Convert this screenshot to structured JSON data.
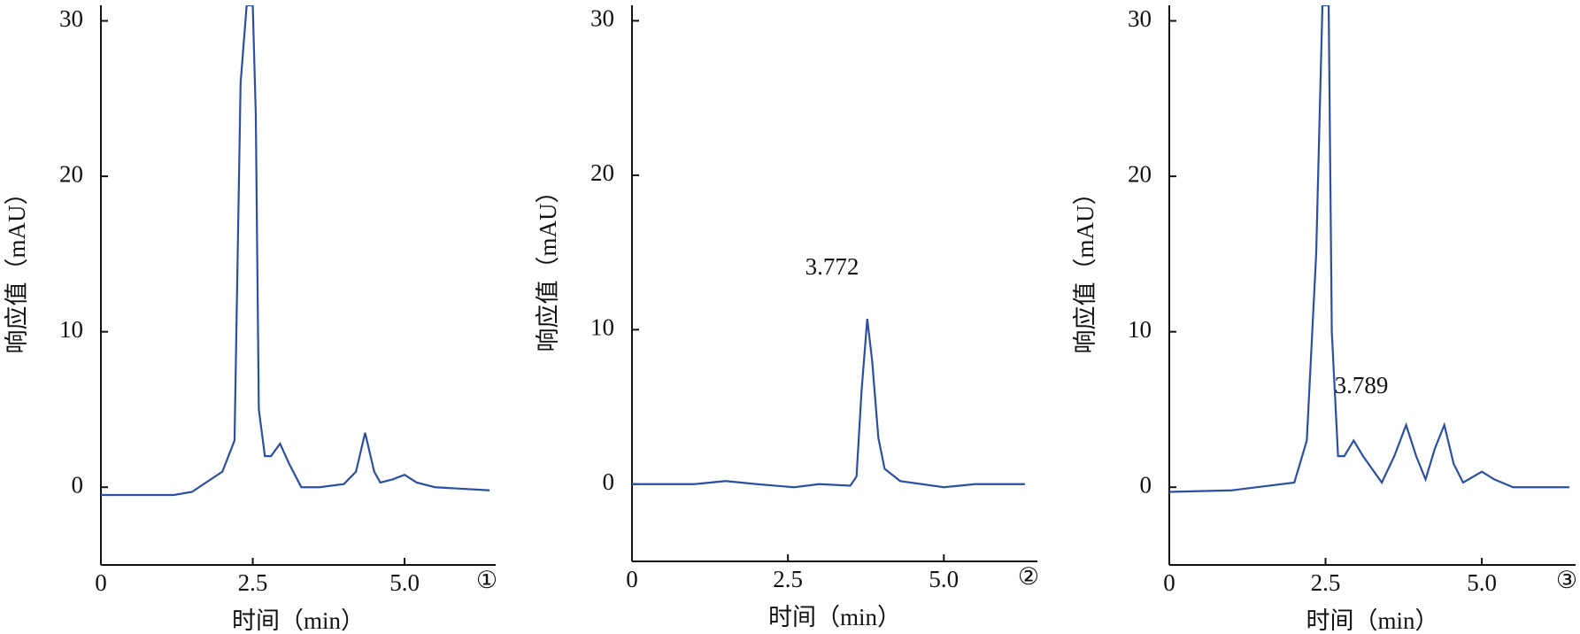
{
  "chart_data": [
    {
      "type": "line",
      "xlabel": "时间（min）",
      "ylabel": "响应值（mAU）",
      "panel_label": "①",
      "x": [
        0,
        1.2,
        1.5,
        2.0,
        2.2,
        2.3,
        2.4,
        2.5,
        2.55,
        2.6,
        2.7,
        2.8,
        2.95,
        3.1,
        3.3,
        3.6,
        4.0,
        4.2,
        4.35,
        4.5,
        4.6,
        4.8,
        5.0,
        5.2,
        5.5,
        6.4
      ],
      "values": [
        -0.5,
        -0.5,
        -0.3,
        1,
        3,
        26,
        31,
        31,
        24,
        5,
        2,
        2,
        2.8,
        1.5,
        0,
        0,
        0.2,
        1,
        3.5,
        1,
        0.3,
        0.5,
        0.8,
        0.3,
        0,
        -0.2
      ],
      "color": "#2b4fa3",
      "xlim": [
        0,
        6.5
      ],
      "ylim": [
        -5,
        31
      ],
      "xticks": [
        0,
        2.5,
        {
          "value": 5,
          "label": "5.0"
        }
      ],
      "yticks": [
        0,
        10,
        20,
        30
      ]
    },
    {
      "type": "line",
      "xlabel": "时间（min）",
      "ylabel": "响应值（mAU）",
      "panel_label": "②",
      "annotation": "3.772",
      "x": [
        0,
        1.0,
        1.5,
        2.0,
        2.6,
        3.0,
        3.5,
        3.6,
        3.68,
        3.772,
        3.85,
        3.95,
        4.05,
        4.3,
        5.0,
        5.5,
        6.3
      ],
      "values": [
        0,
        0,
        0.2,
        0,
        -0.2,
        0,
        -0.1,
        0.5,
        6,
        10.7,
        8,
        3,
        1,
        0.2,
        -0.2,
        0,
        0
      ],
      "color": "#2b4fa3",
      "xlim": [
        0,
        6.5
      ],
      "ylim": [
        -5,
        31
      ],
      "xticks": [
        0,
        2.5,
        {
          "value": 5,
          "label": "5.0"
        }
      ],
      "yticks": [
        0,
        10,
        20,
        30
      ]
    },
    {
      "type": "line",
      "xlabel": "时间（min）",
      "ylabel": "响应值（mAU）",
      "panel_label": "③",
      "annotation": "3.789",
      "x": [
        0,
        1.0,
        2.0,
        2.2,
        2.35,
        2.45,
        2.55,
        2.6,
        2.7,
        2.8,
        2.95,
        3.1,
        3.4,
        3.6,
        3.789,
        3.95,
        4.1,
        4.25,
        4.4,
        4.55,
        4.7,
        5.0,
        5.2,
        5.5,
        6.4
      ],
      "values": [
        -0.3,
        -0.2,
        0.3,
        3,
        15,
        31,
        31,
        10,
        2,
        2,
        3,
        2,
        0.3,
        2,
        4,
        2,
        0.5,
        2.5,
        4,
        1.5,
        0.3,
        1,
        0.5,
        0,
        0
      ],
      "color": "#2b4fa3",
      "xlim": [
        0,
        6.5
      ],
      "ylim": [
        -5,
        31
      ],
      "xticks": [
        0,
        2.5,
        {
          "value": 5,
          "label": "5.0"
        }
      ],
      "yticks": [
        0,
        10,
        20,
        30
      ]
    }
  ]
}
